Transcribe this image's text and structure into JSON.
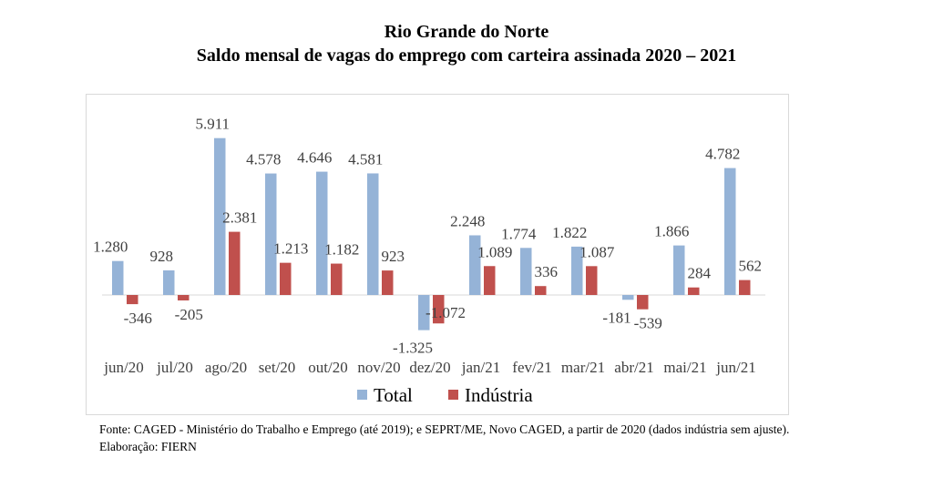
{
  "title_line1": "Rio Grande do Norte",
  "title_line2": "Saldo mensal de vagas do emprego com carteira assinada 2020 – 2021",
  "source": "Fonte: CAGED - Ministério do Trabalho e Emprego (até 2019); e SEPRT/ME, Novo CAGED, a partir de 2020 (dados indústria sem ajuste). Elaboração: FIERN",
  "colors": {
    "total": "#95b3d7",
    "industria": "#c0504d"
  },
  "chart_data": {
    "type": "bar",
    "title": "Saldo mensal de vagas do emprego com carteira assinada 2020 – 2021",
    "categories": [
      "jun/20",
      "jul/20",
      "ago/20",
      "set/20",
      "out/20",
      "nov/20",
      "dez/20",
      "jan/21",
      "fev/21",
      "mar/21",
      "abr/21",
      "mai/21",
      "jun/21"
    ],
    "series": [
      {
        "name": "Total",
        "values": [
          1280,
          928,
          5911,
          4578,
          4646,
          4581,
          -1325,
          2248,
          1774,
          1822,
          -181,
          1866,
          4782
        ],
        "labels": [
          "1.280",
          "928",
          "5.911",
          "4.578",
          "4.646",
          "4.581",
          "-1.325",
          "2.248",
          "1.774",
          "1.822",
          "-181",
          "1.866",
          "4.782"
        ]
      },
      {
        "name": "Indústria",
        "values": [
          -346,
          -205,
          2381,
          1213,
          1182,
          923,
          -1072,
          1089,
          336,
          1087,
          -539,
          284,
          562
        ],
        "labels": [
          "-346",
          "-205",
          "2.381",
          "1.213",
          "1.182",
          "923",
          "-1.072",
          "1.089",
          "336",
          "1.087",
          "-539",
          "284",
          "562"
        ]
      }
    ],
    "legend_position": "bottom",
    "grid": false
  }
}
